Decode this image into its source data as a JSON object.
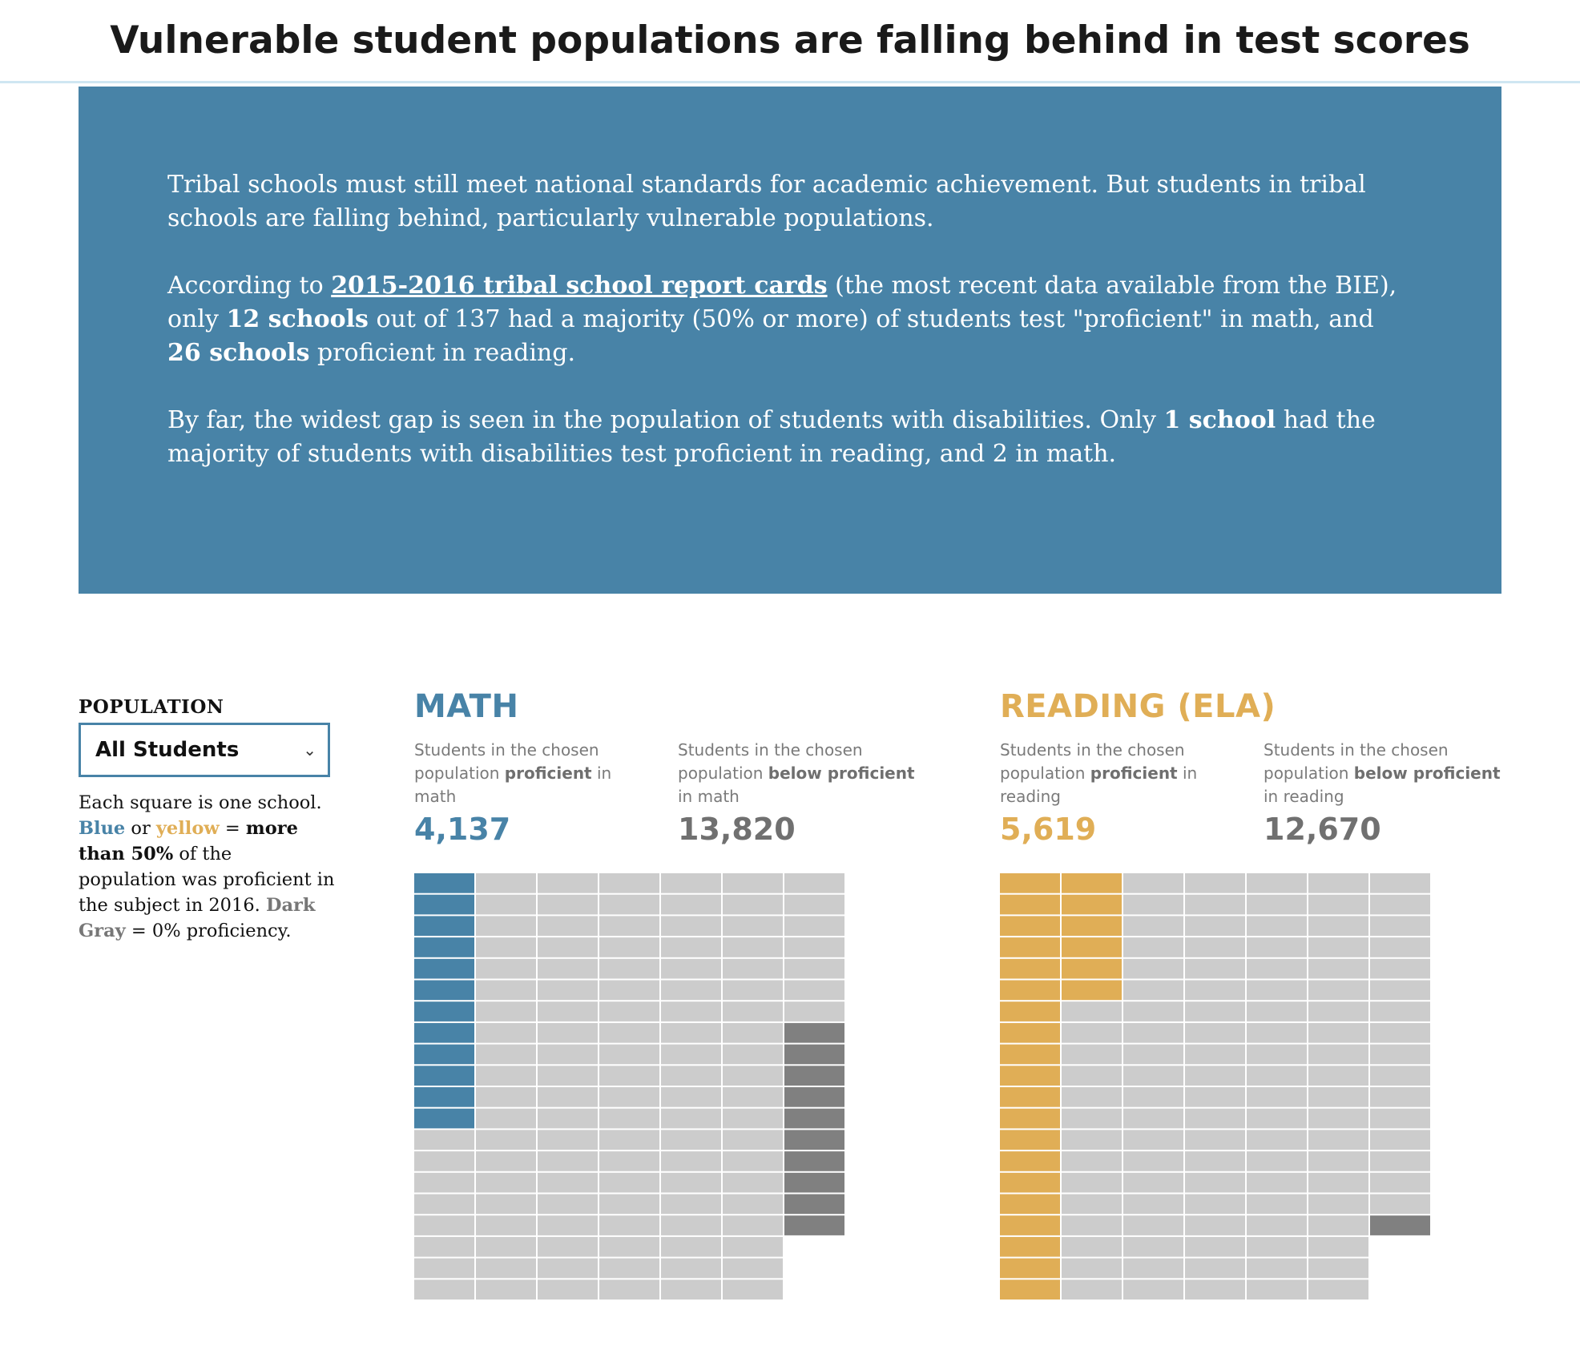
{
  "title": "Vulnerable student populations are falling behind in test scores",
  "intro": {
    "p1": "Tribal schools must still meet national standards for academic achievement. But students in tribal schools are falling behind, particularly vulnerable populations.",
    "p2_before": "According to ",
    "p2_link": "2015-2016 tribal school report cards",
    "p2_mid1": " (the most recent data available from the BIE), only ",
    "p2_b1": "12 schools",
    "p2_mid2": " out of 137 had a majority (50% or more) of students test \"proficient\" in math, and ",
    "p2_b2": "26 schools",
    "p2_end": " proficient in reading.",
    "p3_before": "By far, the widest gap is seen in the population of students with disabilities. Only ",
    "p3_b": "1 school",
    "p3_end": " had the majority of students with disabilities test proficient in reading, and 2 in math."
  },
  "controls": {
    "population_label": "POPULATION",
    "selected": "All Students",
    "chevron_icon": "chevron-down-icon"
  },
  "legend": {
    "t1": "Each square is one school. ",
    "blue": "Blue",
    "t2": " or ",
    "yellow": "yellow",
    "t3": " = ",
    "b1": "more than 50%",
    "t4": " of the population was proficient in the subject in 2016. ",
    "dark": "Dark Gray",
    "t5": " = 0% proficiency."
  },
  "colors": {
    "blue": "#4883a7",
    "yellow": "#e0ae56",
    "light_gray": "#cccccc",
    "dark_gray": "#808080"
  },
  "chart_data": [
    {
      "type": "waffle",
      "title": "MATH",
      "stats": [
        {
          "desc_before": "Students in the chosen population ",
          "desc_bold": "proficient",
          "desc_after": " in math",
          "value": "4,137"
        },
        {
          "desc_before": "Students in the chosen population ",
          "desc_bold": "below proficient",
          "desc_after": " in math",
          "value": "13,820"
        }
      ],
      "total_schools": 137,
      "schools_majority_proficient": 12,
      "schools_zero_proficiency": 10,
      "schools_other": 115
    },
    {
      "type": "waffle",
      "title": "READING (ELA)",
      "stats": [
        {
          "desc_before": "Students in the chosen population ",
          "desc_bold": "proficient",
          "desc_after": " in reading",
          "value": "5,619"
        },
        {
          "desc_before": "Students in the chosen population ",
          "desc_bold": "below proficient",
          "desc_after": " in reading",
          "value": "12,670"
        }
      ],
      "total_schools": 137,
      "schools_majority_proficient": 26,
      "schools_zero_proficiency": 1,
      "schools_other": 110
    }
  ]
}
